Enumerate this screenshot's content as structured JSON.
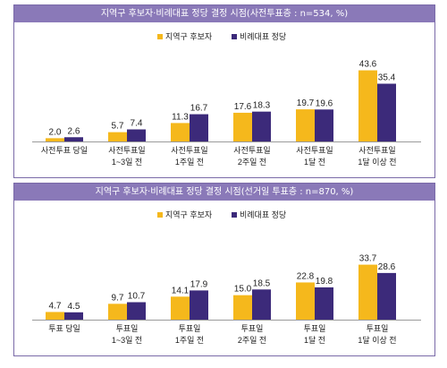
{
  "chart_data": [
    {
      "type": "bar",
      "title": "지역구 후보자·비례대표 정당 결정 시점(사전투표층 : n=534, %)",
      "categories": [
        [
          "사전투표 당일"
        ],
        [
          "사전투표일",
          "1~3일 전"
        ],
        [
          "사전투표일",
          "1주일 전"
        ],
        [
          "사전투표일",
          "2주일 전"
        ],
        [
          "사전투표일",
          "1달 전"
        ],
        [
          "사전투표일",
          "1달 이상 전"
        ]
      ],
      "series": [
        {
          "name": "지역구 후보자",
          "color": "#f5b81c",
          "values": [
            2.0,
            5.7,
            11.3,
            17.6,
            19.7,
            43.6
          ]
        },
        {
          "name": "비례대표 정당",
          "color": "#3c2a7a",
          "values": [
            2.6,
            7.4,
            16.7,
            18.3,
            19.6,
            35.4
          ]
        }
      ],
      "legend": "top-center"
    },
    {
      "type": "bar",
      "title": "지역구 후보자·비례대표 정당 결정 시점(선거일 투표층 : n=870, %)",
      "categories": [
        [
          "투표 당일"
        ],
        [
          "투표일",
          "1~3일 전"
        ],
        [
          "투표일",
          "1주일 전"
        ],
        [
          "투표일",
          "2주일 전"
        ],
        [
          "투표일",
          "1달 전"
        ],
        [
          "투표일",
          "1달 이상 전"
        ]
      ],
      "series": [
        {
          "name": "지역구 후보자",
          "color": "#f5b81c",
          "values": [
            4.7,
            9.7,
            14.1,
            15.0,
            22.8,
            33.7
          ]
        },
        {
          "name": "비례대표 정당",
          "color": "#3c2a7a",
          "values": [
            4.5,
            10.7,
            17.9,
            18.5,
            19.8,
            28.6
          ]
        }
      ],
      "legend": "top-center"
    }
  ]
}
